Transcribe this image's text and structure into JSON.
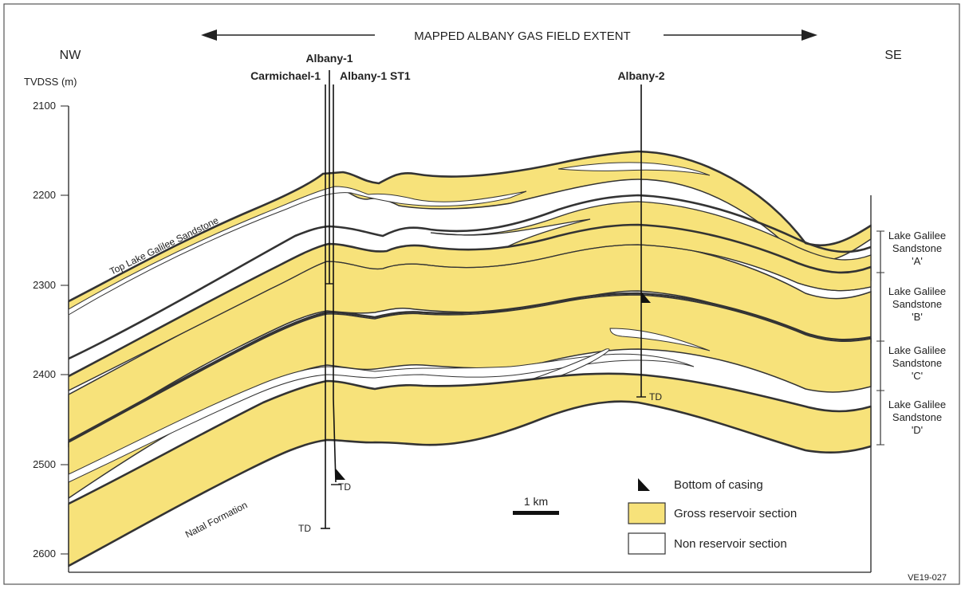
{
  "header": {
    "extent_label": "MAPPED ALBANY GAS FIELD EXTENT"
  },
  "orientation": {
    "left": "NW",
    "right": "SE"
  },
  "axis": {
    "ylabel": "TVDSS (m)",
    "ticks": [
      "2100",
      "2200",
      "2300",
      "2400",
      "2500",
      "2600"
    ]
  },
  "wells": [
    {
      "name": "Albany-1"
    },
    {
      "name": "Carmichael-1"
    },
    {
      "name": "Albany-1 ST1"
    },
    {
      "name": "Albany-2"
    }
  ],
  "td_label": "TD",
  "horizon_labels": {
    "top": "Top Lake Galilee Sandstone",
    "base": "Natal Formation"
  },
  "units": [
    {
      "line1": "Lake Galilee",
      "line2": "Sandstone",
      "line3": "'A'"
    },
    {
      "line1": "Lake Galilee",
      "line2": "Sandstone",
      "line3": "'B'"
    },
    {
      "line1": "Lake Galilee",
      "line2": "Sandstone",
      "line3": "'C'"
    },
    {
      "line1": "Lake Galilee",
      "line2": "Sandstone",
      "line3": "'D'"
    }
  ],
  "legend": {
    "casing": "Bottom of casing",
    "gross": "Gross reservoir section",
    "non": "Non reservoir section"
  },
  "scale_bar": "1 km",
  "figure_id": "VE19-027",
  "colors": {
    "reservoir": "#f7e27a",
    "non_reservoir": "#ffffff",
    "line": "#333333"
  }
}
